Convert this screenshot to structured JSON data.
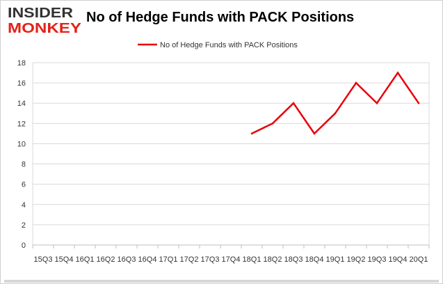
{
  "brand": {
    "logo_line1": "INSIDER",
    "logo_line2": "MONKEY",
    "color_dark": "#333333",
    "color_accent": "#e2231a"
  },
  "chart_data": {
    "type": "line",
    "title": "No of Hedge Funds with PACK Positions",
    "xlabel": "",
    "ylabel": "",
    "categories": [
      "2015Q3",
      "2015Q4",
      "2016Q1",
      "2016Q2",
      "2016Q3",
      "2016Q4",
      "2017Q1",
      "2017Q2",
      "2017Q3",
      "2017Q4",
      "2018Q1",
      "2018Q2",
      "2018Q3",
      "2018Q4",
      "2019Q1",
      "2019Q2",
      "2019Q3",
      "2019Q4",
      "2020Q1"
    ],
    "tick_labels": [
      "15Q3",
      "15Q4",
      "16Q1",
      "16Q2",
      "16Q3",
      "16Q4",
      "17Q1",
      "17Q2",
      "17Q3",
      "17Q4",
      "18Q1",
      "18Q2",
      "18Q3",
      "18Q4",
      "19Q1",
      "19Q2",
      "19Q3",
      "19Q4",
      "20Q1"
    ],
    "series": [
      {
        "name": "No of Hedge Funds with PACK Positions",
        "color": "#e8000b",
        "values": [
          null,
          null,
          null,
          null,
          null,
          null,
          null,
          null,
          null,
          null,
          11,
          12,
          14,
          11,
          13,
          16,
          14,
          17,
          14
        ]
      }
    ],
    "ylim": [
      0,
      18
    ],
    "yticks": [
      0,
      2,
      4,
      6,
      8,
      10,
      12,
      14,
      16,
      18
    ],
    "grid": true,
    "legend": "top-center"
  }
}
